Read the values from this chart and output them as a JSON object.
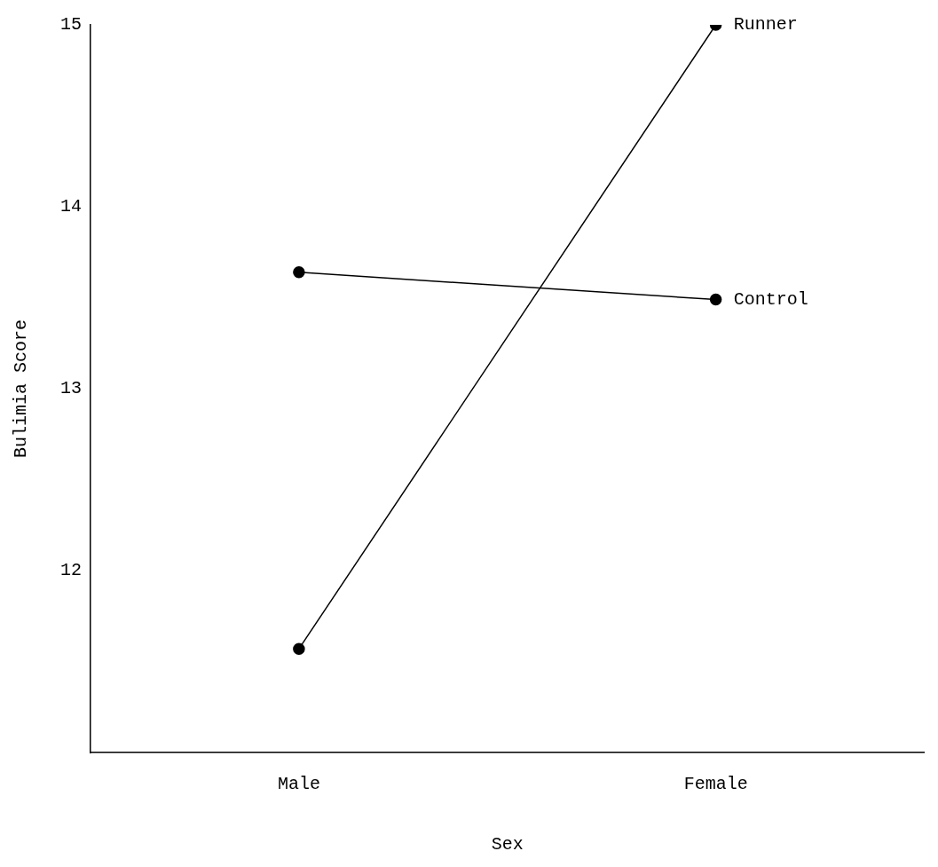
{
  "chart_data": {
    "type": "line",
    "xlabel": "Sex",
    "ylabel": "Bulimia Score",
    "categories": [
      "Male",
      "Female"
    ],
    "series": [
      {
        "name": "Runner",
        "color": "#000000",
        "values": [
          11.57,
          15.0
        ]
      },
      {
        "name": "Control",
        "color": "#000000",
        "values": [
          13.64,
          13.49
        ]
      }
    ],
    "ylim": [
      11,
      15
    ],
    "yticks": [
      12,
      13,
      14,
      15
    ],
    "grid": false,
    "legend": false,
    "marker": "circle",
    "line_style": "solid"
  }
}
